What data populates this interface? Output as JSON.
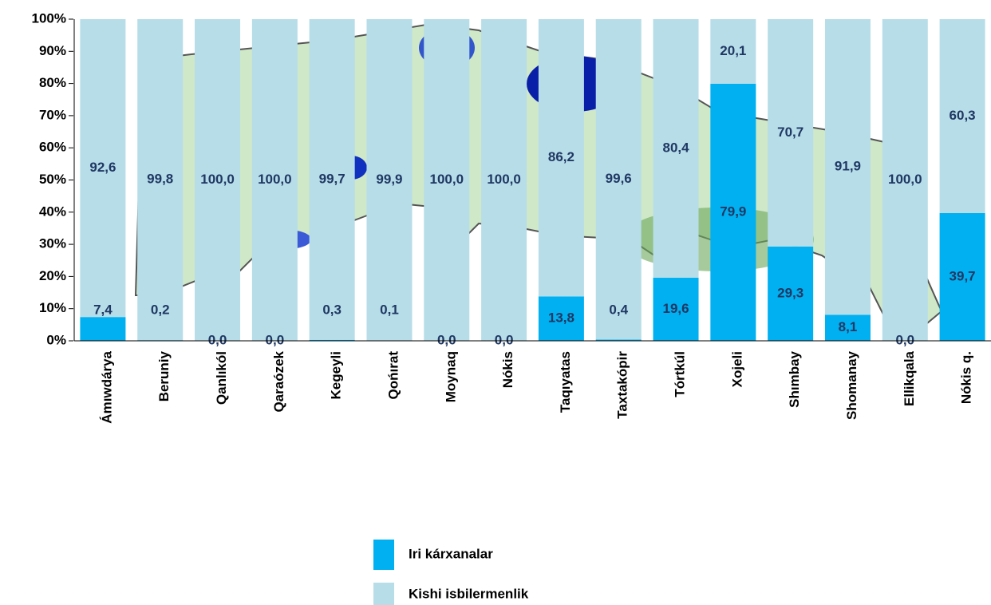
{
  "chart_data": {
    "type": "stacked_bar",
    "categories": [
      "Ámıwdárya",
      "Beruniy",
      "Qanlıkól",
      "Qaraózek",
      "Kegeyli",
      "Qońırat",
      "Moynaq",
      "Nókis",
      "Taqıyatas",
      "Taxtakópir",
      "Tórtkúl",
      "Xojeli",
      "Shımbay",
      "Shomanay",
      "Ellikqala",
      "Nókis q."
    ],
    "series": [
      {
        "name": "Iri kárxanalar",
        "color": "#00b0f0",
        "values": [
          7.4,
          0.2,
          0.0,
          0.0,
          0.3,
          0.1,
          0.0,
          0.0,
          13.8,
          0.4,
          19.6,
          79.9,
          29.3,
          8.1,
          0.0,
          39.7
        ],
        "value_labels": [
          "7,4",
          "0,2",
          "0,0",
          "0,0",
          "0,3",
          "0,1",
          "0,0",
          "0,0",
          "13,8",
          "0,4",
          "19,6",
          "79,9",
          "29,3",
          "8,1",
          "0,0",
          "39,7"
        ]
      },
      {
        "name": "Kishi isbilermenlik",
        "color": "#b7dde8",
        "values": [
          92.6,
          99.8,
          100.0,
          100.0,
          99.7,
          99.9,
          100.0,
          100.0,
          86.2,
          99.6,
          80.4,
          20.1,
          70.7,
          91.9,
          100.0,
          60.3
        ],
        "value_labels": [
          "92,6",
          "99,8",
          "100,0",
          "100,0",
          "99,7",
          "99,9",
          "100,0",
          "100,0",
          "86,2",
          "99,6",
          "80,4",
          "20,1",
          "70,7",
          "91,9",
          "100,0",
          "60,3"
        ]
      }
    ],
    "ylim": [
      0,
      100
    ],
    "yticks": [
      {
        "value": 0,
        "label": "0%"
      },
      {
        "value": 10,
        "label": "10%"
      },
      {
        "value": 20,
        "label": "20%"
      },
      {
        "value": 30,
        "label": "30%"
      },
      {
        "value": 40,
        "label": "40%"
      },
      {
        "value": 50,
        "label": "50%"
      },
      {
        "value": 60,
        "label": "60%"
      },
      {
        "value": 70,
        "label": "70%"
      },
      {
        "value": 80,
        "label": "80%"
      },
      {
        "value": 90,
        "label": "90%"
      },
      {
        "value": 100,
        "label": "100%"
      }
    ],
    "legend": "bottom"
  }
}
